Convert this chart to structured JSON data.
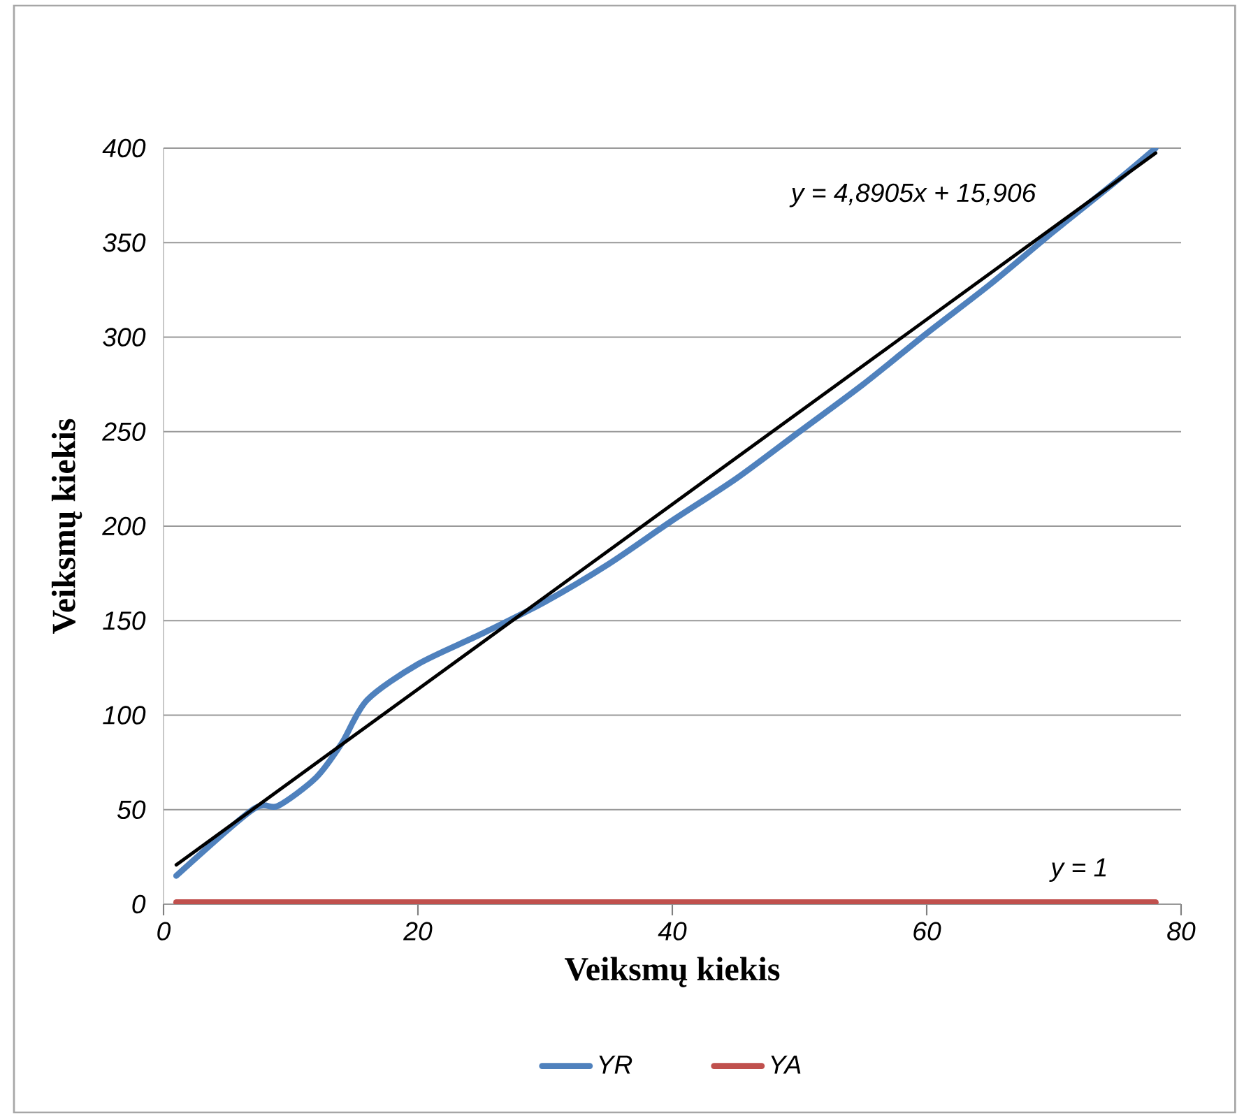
{
  "chart_data": {
    "type": "line",
    "xlabel": "Veiksmų kiekis",
    "ylabel": "Veiksmų kiekis",
    "xlim": [
      0,
      80
    ],
    "ylim": [
      0,
      400
    ],
    "xticks": [
      0,
      20,
      40,
      60,
      80
    ],
    "yticks": [
      0,
      50,
      100,
      150,
      200,
      250,
      300,
      350,
      400
    ],
    "grid": "y",
    "legend": "bottom",
    "annotations": [
      "y = 4,8905x + 15,906",
      "y = 1"
    ],
    "series": [
      {
        "name": "YR",
        "color": "#4f81bd",
        "x": [
          1,
          7,
          9,
          12,
          14,
          16,
          20,
          25,
          30,
          35,
          40,
          45,
          50,
          55,
          60,
          65,
          70,
          75,
          78
        ],
        "values": [
          15,
          50,
          52,
          67,
          85,
          108,
          127,
          143,
          160,
          180,
          203,
          225,
          250,
          275,
          302,
          328,
          356,
          383,
          400
        ]
      },
      {
        "name": "YA",
        "color": "#c0504d",
        "x": [
          1,
          78
        ],
        "values": [
          1,
          1
        ]
      },
      {
        "type": "line",
        "color": "#000000",
        "x": [
          1,
          78
        ],
        "values": [
          20.8,
          397.4
        ]
      }
    ]
  }
}
